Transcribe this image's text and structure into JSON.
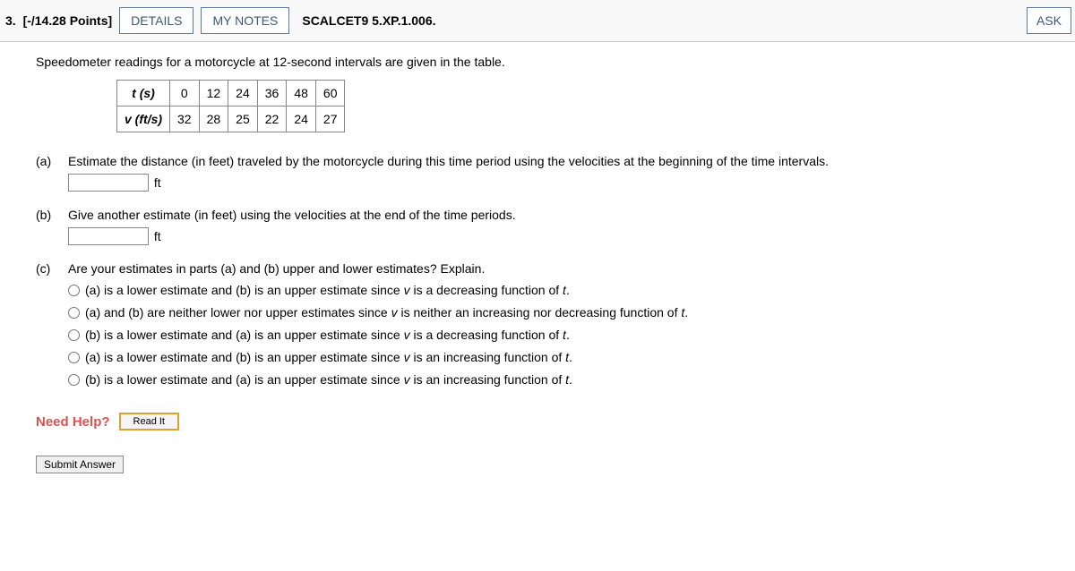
{
  "header": {
    "number": "3.",
    "points": "[-/14.28 Points]",
    "details_label": "DETAILS",
    "mynotes_label": "MY NOTES",
    "assignment_code": "SCALCET9 5.XP.1.006.",
    "ask_label": "ASK"
  },
  "intro": "Speedometer readings for a motorcycle at 12-second intervals are given in the table.",
  "table": {
    "row1_head": "t (s)",
    "row1": [
      "0",
      "12",
      "24",
      "36",
      "48",
      "60"
    ],
    "row2_head": "v (ft/s)",
    "row2": [
      "32",
      "28",
      "25",
      "22",
      "24",
      "27"
    ]
  },
  "parts": {
    "a": {
      "label": "(a)",
      "text": "Estimate the distance (in feet) traveled by the motorcycle during this time period using the velocities at the beginning of the time intervals.",
      "unit": "ft"
    },
    "b": {
      "label": "(b)",
      "text": "Give another estimate (in feet) using the velocities at the end of the time periods.",
      "unit": "ft"
    },
    "c": {
      "label": "(c)",
      "text": "Are your estimates in parts (a) and (b) upper and lower estimates? Explain.",
      "options": [
        "(a) is a lower estimate and (b) is an upper estimate since v is a decreasing function of t.",
        "(a) and (b) are neither lower nor upper estimates since v is neither an increasing nor decreasing function of t.",
        "(b) is a lower estimate and (a) is an upper estimate since v is a decreasing function of t.",
        "(a) is a lower estimate and (b) is an upper estimate since v is an increasing function of t.",
        "(b) is a lower estimate and (a) is an upper estimate since v is an increasing function of t."
      ]
    }
  },
  "help": {
    "label": "Need Help?",
    "readit": "Read It"
  },
  "submit_label": "Submit Answer"
}
